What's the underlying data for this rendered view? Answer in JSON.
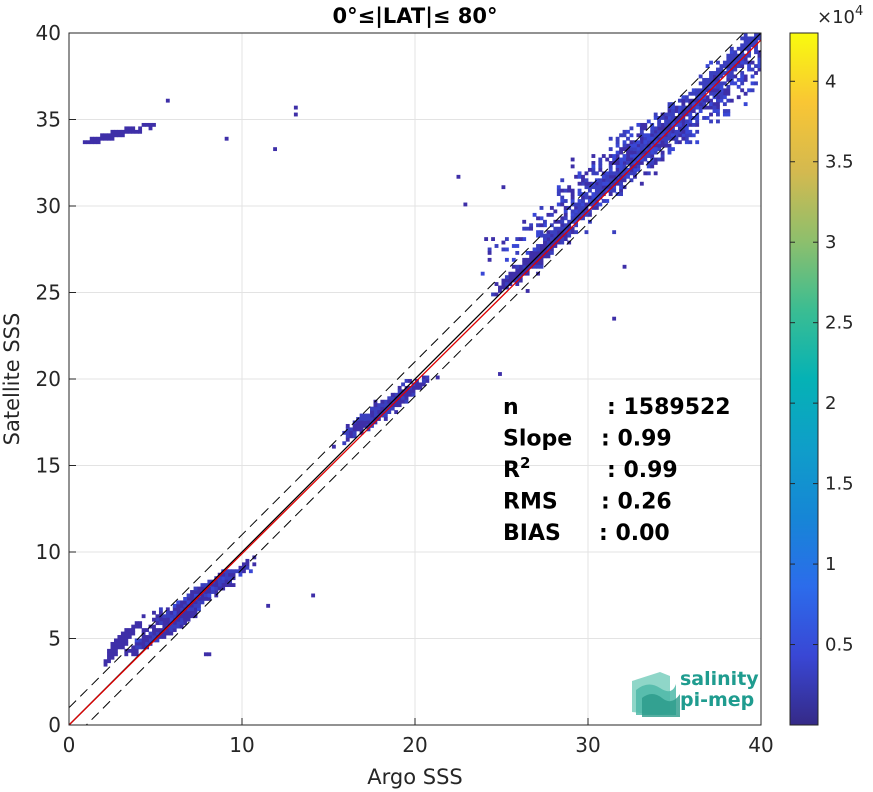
{
  "chart_data": {
    "type": "heatmap",
    "title": "0°≤|LAT|≤ 80°",
    "xlabel": "Argo SSS",
    "ylabel": "Satellite SSS",
    "xlim": [
      0,
      40
    ],
    "ylim": [
      0,
      40
    ],
    "xticks": [
      "0",
      "10",
      "20",
      "30",
      "40"
    ],
    "yticks": [
      "0",
      "5",
      "10",
      "15",
      "20",
      "25",
      "30",
      "35",
      "40"
    ],
    "grid": true,
    "colorbar": {
      "colormap": "parula",
      "range": [
        0,
        43000
      ],
      "ticks": [
        "0.5",
        "1",
        "1.5",
        "2",
        "2.5",
        "3",
        "3.5",
        "4"
      ],
      "tick_values": [
        5000,
        10000,
        15000,
        20000,
        25000,
        30000,
        35000,
        40000
      ],
      "exponent_label": "×10",
      "exponent_power": "4"
    },
    "clusters": [
      {
        "x": 2.5,
        "y": 34.1,
        "sx": 0.8,
        "sy": 0.25,
        "density": 0.2
      },
      {
        "x": 3.0,
        "y": 4.8,
        "sx": 0.4,
        "sy": 0.5,
        "density": 0.3
      },
      {
        "x": 5.3,
        "y": 5.3,
        "sx": 0.7,
        "sy": 0.5,
        "density": 0.6
      },
      {
        "x": 7.2,
        "y": 7.2,
        "sx": 1.2,
        "sy": 0.9,
        "density": 0.8
      },
      {
        "x": 18.2,
        "y": 18.3,
        "sx": 1.0,
        "sy": 0.8,
        "density": 0.7
      },
      {
        "x": 26.8,
        "y": 26.8,
        "sx": 0.8,
        "sy": 0.8,
        "density": 0.5
      },
      {
        "x": 33.5,
        "y": 33.5,
        "sx": 3.5,
        "sy": 3.0,
        "density": 1.0
      }
    ],
    "lines": [
      {
        "name": "one-to-one",
        "color": "#000000",
        "x": [
          0,
          40
        ],
        "y": [
          0,
          40
        ]
      },
      {
        "name": "regression",
        "color": "#e00000",
        "x": [
          0,
          40
        ],
        "y": [
          0,
          39.6
        ]
      },
      {
        "name": "upper-bound",
        "color": "#000000",
        "dash": true,
        "x": [
          0,
          40
        ],
        "y": [
          1,
          41
        ]
      },
      {
        "name": "lower-bound",
        "color": "#000000",
        "dash": true,
        "x": [
          0,
          40
        ],
        "y": [
          -1,
          39
        ]
      }
    ],
    "stats": [
      {
        "label": "n",
        "value": ": 1589522",
        "valueOffset": 104
      },
      {
        "label": "Slope",
        "value": ": 0.99",
        "valueOffset": 98
      },
      {
        "label": "R",
        "sup": "2",
        "value": ": 0.99",
        "valueOffset": 104
      },
      {
        "label": "RMS",
        "value": ": 0.26",
        "valueOffset": 98
      },
      {
        "label": "BIAS",
        "value": ": 0.00",
        "valueOffset": 96
      }
    ]
  },
  "logo": {
    "line1": "salinity",
    "line2": "pi-mep"
  }
}
